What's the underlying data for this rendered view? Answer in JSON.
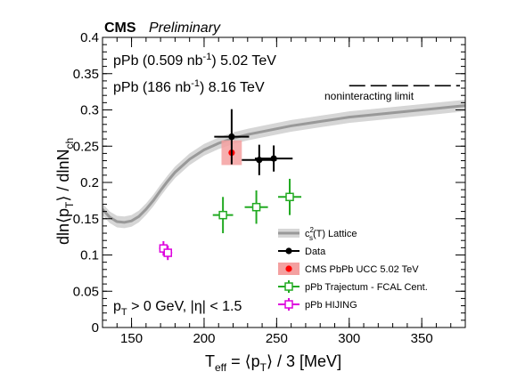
{
  "header": {
    "experiment": "CMS",
    "status": "Preliminary"
  },
  "annotations": {
    "line1": {
      "pre": "pPb (0.509 nb",
      "sup": "-1",
      "post": ") 5.02 TeV"
    },
    "line2": {
      "pre": "pPb (186 nb",
      "sup": "-1",
      "post": ") 8.16 TeV"
    },
    "noninteracting": "noninteracting limit",
    "cut": {
      "pt_pre": "p",
      "pt_sub": "T",
      "pt_post": " > 0 GeV, |η| < 1.5"
    }
  },
  "colors": {
    "data": "#000000",
    "pbpb": "#ff0000",
    "pbpb_band": "#f4a0a0",
    "trajectum": "#22aa22",
    "hijing": "#dd00dd",
    "lattice": "#999999",
    "lattice_band": "#d6d6d6"
  },
  "chart_data": {
    "type": "scatter",
    "xlabel": {
      "pre": "T",
      "sub": "eff",
      "post": " = ⟨p",
      "sub2": "T",
      "post2": "⟩ / 3 [MeV]"
    },
    "ylabel": {
      "pre": "dln⟨p",
      "sub": "T",
      "mid": "⟩ / dlnN",
      "sub2": "ch"
    },
    "xlim": [
      130,
      380
    ],
    "ylim": [
      0,
      0.4
    ],
    "xticks": [
      150,
      200,
      250,
      300,
      350
    ],
    "yticks": [
      0,
      0.05,
      0.1,
      0.15,
      0.2,
      0.25,
      0.3,
      0.35,
      0.4
    ],
    "ytick_labels": [
      "0",
      "0.05",
      "0.1",
      "0.15",
      "0.2",
      "0.25",
      "0.3",
      "0.35",
      "0.4"
    ],
    "noninteracting_limit": {
      "y": 0.3333,
      "x_range": [
        300,
        380
      ]
    },
    "legend": [
      {
        "key": "lattice",
        "pre": "c",
        "sup": "2",
        "sub": "s",
        "post": "(T) Lattice"
      },
      {
        "key": "data",
        "label": "Data"
      },
      {
        "key": "pbpb",
        "label": "CMS PbPb UCC 5.02 TeV"
      },
      {
        "key": "trajectum",
        "label": "pPb Trajectum - FCAL Cent."
      },
      {
        "key": "hijing",
        "label": "pPb HIJING"
      }
    ],
    "series": [
      {
        "key": "lattice",
        "x": [
          130,
          135,
          140,
          145,
          150,
          155,
          160,
          165,
          170,
          175,
          180,
          190,
          200,
          210,
          220,
          230,
          240,
          250,
          260,
          270,
          280,
          290,
          300,
          320,
          340,
          360,
          380
        ],
        "y": [
          0.163,
          0.152,
          0.146,
          0.145,
          0.147,
          0.153,
          0.163,
          0.175,
          0.189,
          0.202,
          0.214,
          0.232,
          0.245,
          0.254,
          0.261,
          0.266,
          0.27,
          0.274,
          0.278,
          0.281,
          0.284,
          0.287,
          0.29,
          0.294,
          0.298,
          0.302,
          0.306
        ],
        "band": 0.008
      },
      {
        "key": "data",
        "points": [
          {
            "x": 219,
            "y": 0.263,
            "xerr": 12,
            "yerr": 0.038
          },
          {
            "x": 238,
            "y": 0.231,
            "xerr": 12,
            "yerr": 0.021
          },
          {
            "x": 248,
            "y": 0.233,
            "xerr": 13,
            "yerr": 0.018
          }
        ]
      },
      {
        "key": "pbpb",
        "points": [
          {
            "x": 219,
            "y": 0.241,
            "xerr": 7,
            "yerr": 0.017
          }
        ]
      },
      {
        "key": "trajectum",
        "points": [
          {
            "x": 213,
            "y": 0.155,
            "xerr": 7,
            "yerr": 0.025
          },
          {
            "x": 236,
            "y": 0.166,
            "xerr": 8,
            "yerr": 0.023
          },
          {
            "x": 259,
            "y": 0.18,
            "xerr": 8,
            "yerr": 0.025
          }
        ]
      },
      {
        "key": "hijing",
        "points": [
          {
            "x": 172,
            "y": 0.109,
            "xerr": 3,
            "yerr": 0.01
          },
          {
            "x": 175,
            "y": 0.103,
            "xerr": 3,
            "yerr": 0.01
          }
        ]
      }
    ]
  }
}
